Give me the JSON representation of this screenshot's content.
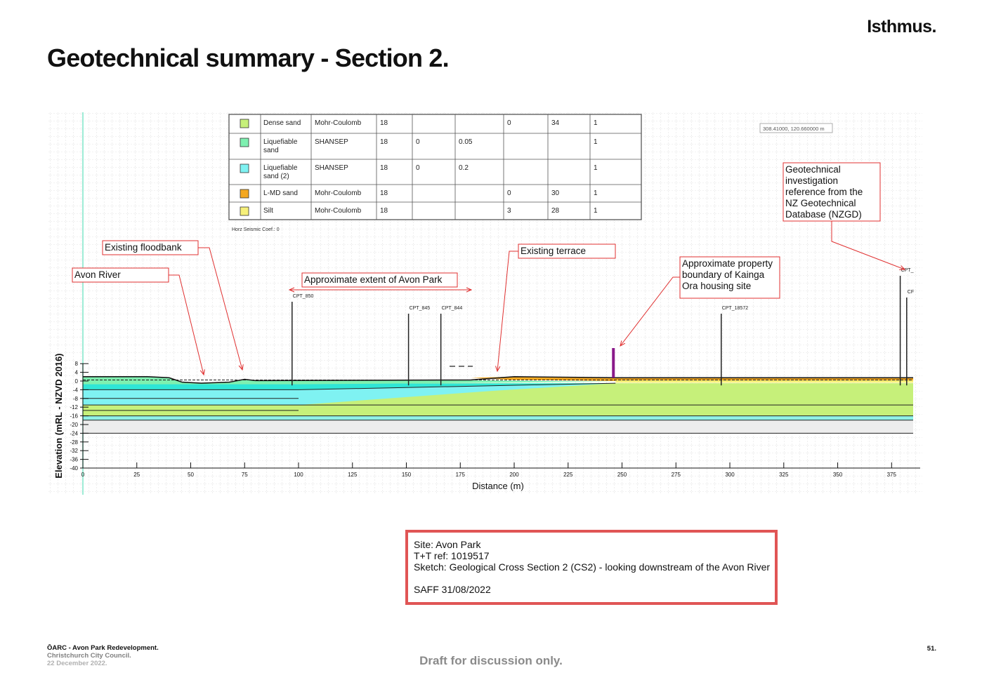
{
  "header": {
    "brand": "Isthmus.",
    "title": "Geotechnical summary - Section 2."
  },
  "materials_table": {
    "rows": [
      {
        "color": "#c6f07a",
        "name": "Dense sand",
        "model": "Mohr-Coulomb",
        "unit_weight": "18",
        "c1": "",
        "c2": "",
        "c3": "0",
        "phi": "34",
        "last": "1"
      },
      {
        "color": "#7ef0b0",
        "name": "Liquefiable sand",
        "model": "SHANSEP",
        "unit_weight": "18",
        "c1": "0",
        "c2": "0.05",
        "c3": "",
        "phi": "",
        "last": "1"
      },
      {
        "color": "#7ff2f2",
        "name": "Liquefiable sand (2)",
        "model": "SHANSEP",
        "unit_weight": "18",
        "c1": "0",
        "c2": "0.2",
        "c3": "",
        "phi": "",
        "last": "1"
      },
      {
        "color": "#f4a820",
        "name": "L-MD sand",
        "model": "Mohr-Coulomb",
        "unit_weight": "18",
        "c1": "",
        "c2": "",
        "c3": "0",
        "phi": "30",
        "last": "1"
      },
      {
        "color": "#f6f07a",
        "name": "Silt",
        "model": "Mohr-Coulomb",
        "unit_weight": "18",
        "c1": "",
        "c2": "",
        "c3": "3",
        "phi": "28",
        "last": "1"
      }
    ],
    "seismic_note": "Horz Seismic Coef.: 0"
  },
  "coordinate_readout": "308.41000, 120.660000 m",
  "callouts": {
    "avon_river": "Avon River",
    "floodbank": "Existing floodbank",
    "avon_park_extent": "Approximate extent of Avon Park",
    "terrace": "Existing terrace",
    "property_boundary": [
      "Approximate property",
      "boundary of Kainga",
      "Ora housing site"
    ],
    "nzgd_reference": [
      "Geotechnical",
      "investigation",
      "reference from the",
      "NZ Geotechnical",
      "Database (NZGD)"
    ]
  },
  "cpts": [
    {
      "label": "CPT_850",
      "distance": 97
    },
    {
      "label": "CPT_845",
      "distance": 151
    },
    {
      "label": "CPT_844",
      "distance": 166
    },
    {
      "label": "CPT_18572",
      "distance": 296
    },
    {
      "label": "CPT_",
      "distance": 379
    },
    {
      "label": "CF",
      "distance": 382
    }
  ],
  "chart_data": {
    "type": "cross-section",
    "xlabel": "Distance (m)",
    "ylabel": "Elevation (mRL - NZVD 2016)",
    "xlim": [
      0,
      385
    ],
    "ylim": [
      -40,
      8
    ],
    "x_ticks": [
      0,
      25,
      50,
      75,
      100,
      125,
      150,
      175,
      200,
      225,
      250,
      275,
      300,
      325,
      350,
      375
    ],
    "y_ticks": [
      8,
      4,
      0,
      -4,
      -8,
      -12,
      -16,
      -20,
      -24,
      -28,
      -32,
      -36,
      -40
    ],
    "property_boundary_distance": 246
  },
  "site_info": {
    "site": "Site: Avon Park",
    "ref": "T+T ref: 1019517",
    "sketch": "Sketch: Geological Cross Section 2 (CS2) - looking downstream of the Avon River",
    "saff": "SAFF 31/08/2022"
  },
  "footer": {
    "project": "ŌARC - Avon Park Redevelopment.",
    "client": "Christchurch City Council.",
    "date": "22 December 2022.",
    "draft": "Draft for discussion only.",
    "page": "51."
  }
}
